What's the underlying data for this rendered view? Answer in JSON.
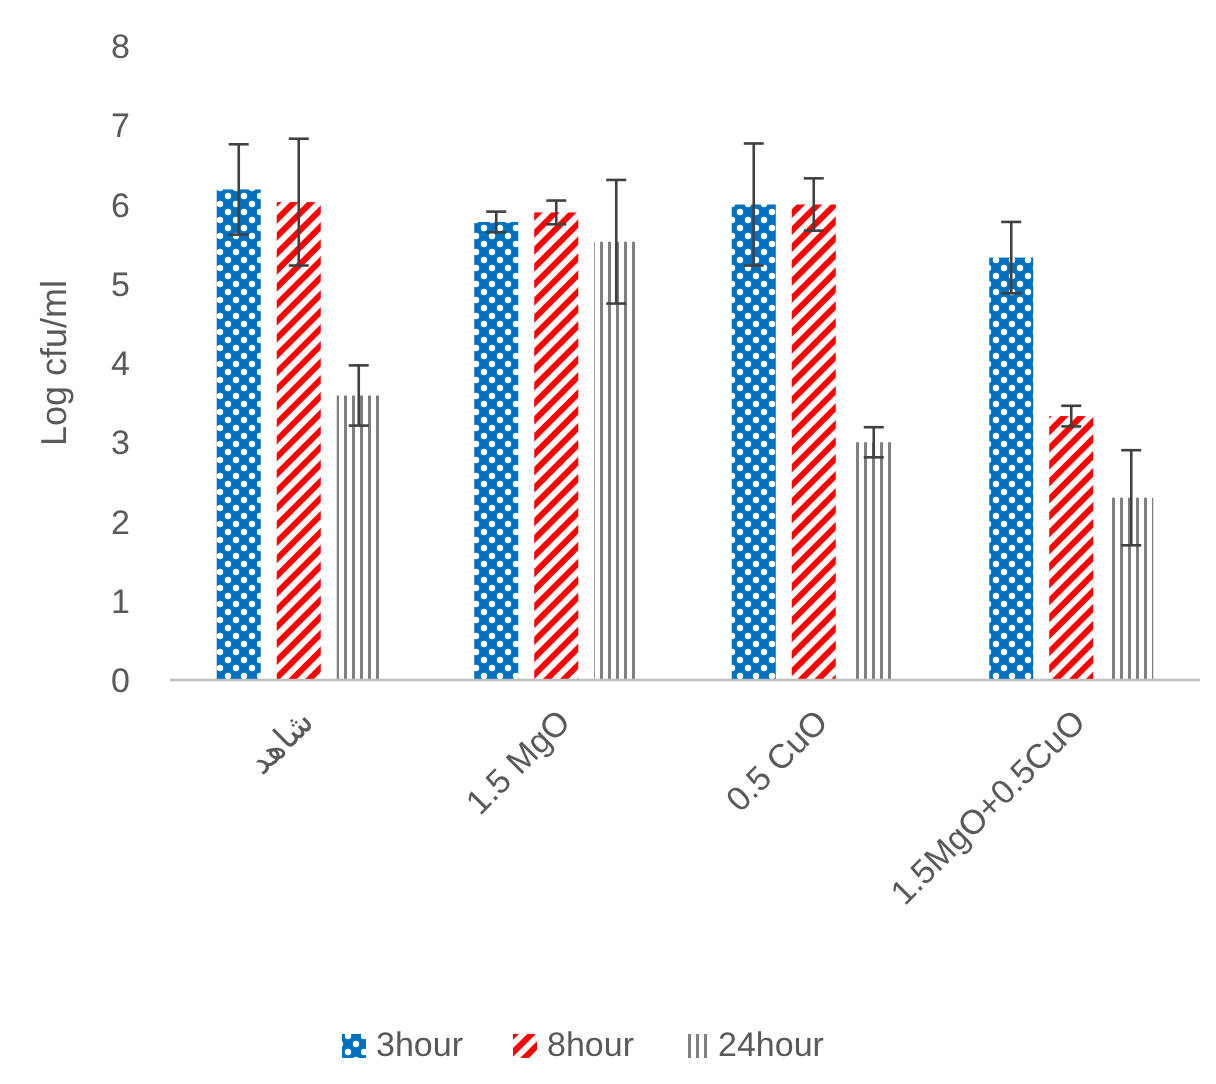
{
  "chart_data": {
    "type": "bar",
    "ylabel": "Log cfu/ml",
    "categories": [
      "شاهد",
      "1.5 MgO",
      "0.5 CuO",
      "1.5MgO+0.5CuO"
    ],
    "series": [
      {
        "name": "3hour",
        "color": "#0070c0",
        "values": [
          6.19,
          5.78,
          6.0,
          5.33
        ],
        "errors": [
          0.57,
          0.13,
          0.77,
          0.45
        ]
      },
      {
        "name": "8hour",
        "color": "#ff0000",
        "values": [
          6.03,
          5.9,
          6.0,
          3.33
        ],
        "errors": [
          0.8,
          0.15,
          0.33,
          0.13
        ]
      },
      {
        "name": "24hour",
        "color": "#7f7f7f",
        "values": [
          3.59,
          5.53,
          3.0,
          2.3
        ],
        "errors": [
          0.38,
          0.78,
          0.19,
          0.6
        ]
      }
    ],
    "ylim": [
      0,
      8
    ],
    "yticks": [
      0,
      1,
      2,
      3,
      4,
      5,
      6,
      7,
      8
    ],
    "grid": false,
    "legend": "bottom"
  }
}
